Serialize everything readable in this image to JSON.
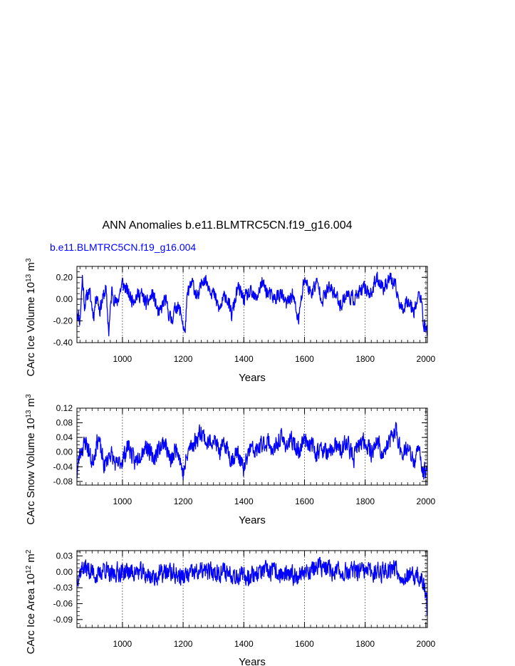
{
  "title": "ANN Anomalies b.e11.BLMTRC5CN.f19_g16.004",
  "series_label": "b.e11.BLMTRC5CN.f19_g16.004",
  "colors": {
    "line": "#0000ff",
    "axes": "#000000",
    "grid": "#555555"
  },
  "chart_data": [
    {
      "type": "line",
      "ylabel_base": "CArc Ice Volume 10",
      "ylabel_exp1": "13",
      "ylabel_unit": " m",
      "ylabel_exp2": "3",
      "xlabel": "Years",
      "xlim": [
        850,
        2005
      ],
      "ylim": [
        -0.4,
        0.3
      ],
      "yticks": [
        -0.4,
        -0.2,
        0.0,
        0.2
      ],
      "ytick_labels": [
        "-0.40",
        "-0.20",
        "0.00",
        "0.20"
      ],
      "xticks": [
        1000,
        1200,
        1400,
        1600,
        1800,
        2000
      ],
      "xtick_labels": [
        "1000",
        "1200",
        "1400",
        "1600",
        "1800",
        "2000"
      ],
      "gridlines_x": [
        1000,
        1200,
        1400,
        1600,
        1800,
        2000
      ],
      "series": [
        {
          "keypoints": [
            [
              850,
              -0.1
            ],
            [
              860,
              -0.2
            ],
            [
              868,
              0.2
            ],
            [
              875,
              -0.05
            ],
            [
              890,
              0.08
            ],
            [
              905,
              -0.15
            ],
            [
              915,
              0.05
            ],
            [
              925,
              -0.1
            ],
            [
              945,
              0.1
            ],
            [
              955,
              -0.3
            ],
            [
              965,
              0.08
            ],
            [
              980,
              -0.05
            ],
            [
              1000,
              0.15
            ],
            [
              1030,
              0.0
            ],
            [
              1060,
              0.05
            ],
            [
              1080,
              -0.05
            ],
            [
              1100,
              0.05
            ],
            [
              1120,
              -0.15
            ],
            [
              1140,
              0.0
            ],
            [
              1160,
              -0.2
            ],
            [
              1180,
              -0.05
            ],
            [
              1195,
              -0.15
            ],
            [
              1205,
              -0.33
            ],
            [
              1215,
              0.05
            ],
            [
              1230,
              0.15
            ],
            [
              1250,
              0.0
            ],
            [
              1265,
              0.2
            ],
            [
              1280,
              0.15
            ],
            [
              1300,
              0.05
            ],
            [
              1320,
              -0.1
            ],
            [
              1340,
              0.05
            ],
            [
              1360,
              -0.15
            ],
            [
              1380,
              0.1
            ],
            [
              1400,
              0.0
            ],
            [
              1420,
              0.05
            ],
            [
              1440,
              0.0
            ],
            [
              1460,
              0.15
            ],
            [
              1480,
              0.05
            ],
            [
              1500,
              0.0
            ],
            [
              1520,
              0.05
            ],
            [
              1540,
              -0.05
            ],
            [
              1560,
              0.05
            ],
            [
              1580,
              -0.2
            ],
            [
              1600,
              0.2
            ],
            [
              1620,
              0.05
            ],
            [
              1640,
              0.15
            ],
            [
              1660,
              0.0
            ],
            [
              1680,
              0.1
            ],
            [
              1700,
              0.05
            ],
            [
              1720,
              -0.05
            ],
            [
              1740,
              0.05
            ],
            [
              1760,
              0.0
            ],
            [
              1780,
              0.05
            ],
            [
              1800,
              0.1
            ],
            [
              1820,
              0.05
            ],
            [
              1840,
              0.2
            ],
            [
              1860,
              0.1
            ],
            [
              1880,
              0.2
            ],
            [
              1900,
              0.1
            ],
            [
              1920,
              -0.1
            ],
            [
              1940,
              0.0
            ],
            [
              1960,
              -0.1
            ],
            [
              1980,
              0.05
            ],
            [
              1995,
              -0.25
            ],
            [
              2005,
              -0.3
            ]
          ],
          "amplitude": 0.06,
          "seed": 11
        }
      ]
    },
    {
      "type": "line",
      "ylabel_base": "CArc Snow Volume 10",
      "ylabel_exp1": "13",
      "ylabel_unit": " m",
      "ylabel_exp2": "3",
      "xlabel": "Years",
      "xlim": [
        850,
        2005
      ],
      "ylim": [
        -0.09,
        0.12
      ],
      "yticks": [
        -0.08,
        -0.04,
        0.0,
        0.04,
        0.08,
        0.12
      ],
      "ytick_labels": [
        "-0.08",
        "-0.04",
        "0.00",
        "0.04",
        "0.08",
        "0.12"
      ],
      "xticks": [
        1000,
        1200,
        1400,
        1600,
        1800,
        2000
      ],
      "xtick_labels": [
        "1000",
        "1200",
        "1400",
        "1600",
        "1800",
        "2000"
      ],
      "gridlines_x": [
        1000,
        1200,
        1400,
        1600,
        1800,
        2000
      ],
      "series": [
        {
          "keypoints": [
            [
              850,
              -0.06
            ],
            [
              860,
              0.0
            ],
            [
              880,
              0.03
            ],
            [
              900,
              -0.03
            ],
            [
              920,
              0.04
            ],
            [
              940,
              -0.04
            ],
            [
              960,
              0.0
            ],
            [
              980,
              -0.04
            ],
            [
              1000,
              -0.02
            ],
            [
              1020,
              0.02
            ],
            [
              1040,
              -0.03
            ],
            [
              1060,
              0.0
            ],
            [
              1080,
              0.02
            ],
            [
              1100,
              -0.02
            ],
            [
              1120,
              0.01
            ],
            [
              1140,
              0.03
            ],
            [
              1160,
              -0.03
            ],
            [
              1180,
              0.02
            ],
            [
              1200,
              -0.06
            ],
            [
              1220,
              0.01
            ],
            [
              1240,
              0.03
            ],
            [
              1260,
              0.06
            ],
            [
              1280,
              0.02
            ],
            [
              1300,
              0.04
            ],
            [
              1320,
              0.0
            ],
            [
              1340,
              0.02
            ],
            [
              1360,
              -0.02
            ],
            [
              1380,
              0.0
            ],
            [
              1400,
              -0.05
            ],
            [
              1420,
              0.01
            ],
            [
              1440,
              0.0
            ],
            [
              1460,
              0.02
            ],
            [
              1480,
              0.03
            ],
            [
              1500,
              0.0
            ],
            [
              1520,
              0.04
            ],
            [
              1540,
              0.02
            ],
            [
              1560,
              0.03
            ],
            [
              1580,
              0.0
            ],
            [
              1600,
              0.04
            ],
            [
              1620,
              0.02
            ],
            [
              1640,
              0.0
            ],
            [
              1660,
              0.01
            ],
            [
              1680,
              -0.01
            ],
            [
              1700,
              0.02
            ],
            [
              1720,
              0.0
            ],
            [
              1740,
              0.03
            ],
            [
              1760,
              -0.02
            ],
            [
              1780,
              0.02
            ],
            [
              1800,
              0.03
            ],
            [
              1820,
              0.0
            ],
            [
              1840,
              0.03
            ],
            [
              1860,
              -0.01
            ],
            [
              1880,
              0.03
            ],
            [
              1900,
              0.06
            ],
            [
              1920,
              0.0
            ],
            [
              1940,
              0.01
            ],
            [
              1960,
              -0.03
            ],
            [
              1980,
              0.01
            ],
            [
              1990,
              -0.06
            ],
            [
              2005,
              -0.04
            ]
          ],
          "amplitude": 0.022,
          "seed": 23
        }
      ]
    },
    {
      "type": "line",
      "ylabel_base": "CArc Ice Area 10",
      "ylabel_exp1": "12",
      "ylabel_unit": " m",
      "ylabel_exp2": "2",
      "xlabel": "Years",
      "xlim": [
        850,
        2005
      ],
      "ylim": [
        -0.105,
        0.04
      ],
      "yticks": [
        -0.09,
        -0.06,
        -0.03,
        0.0,
        0.03
      ],
      "ytick_labels": [
        "-0.09",
        "-0.06",
        "-0.03",
        "0.00",
        "0.03"
      ],
      "xticks": [
        1000,
        1200,
        1400,
        1600,
        1800,
        2000
      ],
      "xtick_labels": [
        "1000",
        "1200",
        "1400",
        "1600",
        "1800",
        "2000"
      ],
      "gridlines_x": [
        1000,
        1200,
        1400,
        1600,
        1800,
        2000
      ],
      "series": [
        {
          "keypoints": [
            [
              850,
              -0.01
            ],
            [
              870,
              0.01
            ],
            [
              900,
              0.0
            ],
            [
              920,
              -0.01
            ],
            [
              940,
              0.01
            ],
            [
              960,
              -0.01
            ],
            [
              980,
              0.0
            ],
            [
              1000,
              0.0
            ],
            [
              1050,
              0.0
            ],
            [
              1100,
              -0.01
            ],
            [
              1150,
              0.0
            ],
            [
              1200,
              -0.01
            ],
            [
              1250,
              0.0
            ],
            [
              1300,
              0.0
            ],
            [
              1350,
              0.0
            ],
            [
              1400,
              -0.01
            ],
            [
              1450,
              0.0
            ],
            [
              1500,
              0.0
            ],
            [
              1550,
              -0.01
            ],
            [
              1600,
              0.0
            ],
            [
              1650,
              0.01
            ],
            [
              1700,
              0.0
            ],
            [
              1750,
              0.0
            ],
            [
              1800,
              0.0
            ],
            [
              1850,
              0.0
            ],
            [
              1900,
              0.01
            ],
            [
              1920,
              -0.01
            ],
            [
              1950,
              -0.01
            ],
            [
              1980,
              -0.01
            ],
            [
              1995,
              -0.03
            ],
            [
              2005,
              -0.07
            ]
          ],
          "amplitude": 0.016,
          "seed": 37
        }
      ]
    }
  ]
}
